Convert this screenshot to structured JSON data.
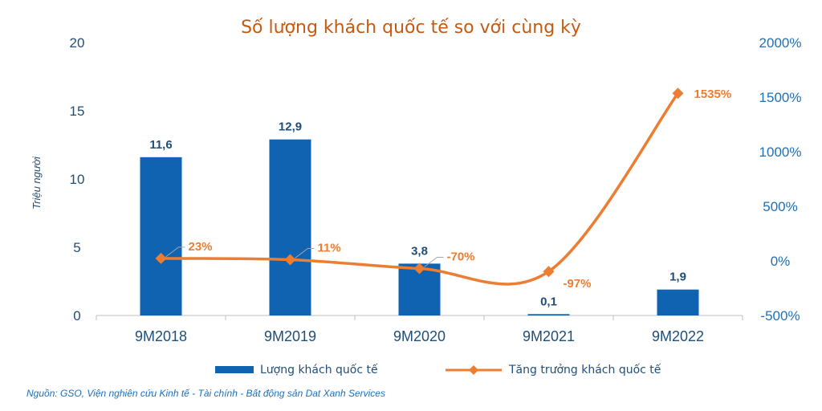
{
  "chart_data": {
    "type": "bar",
    "title": "Số lượng khách quốc tế so với cùng kỳ",
    "ylabel": "Triệu người",
    "xlabel": "",
    "categories": [
      "9M2018",
      "9M2019",
      "9M2020",
      "9M2021",
      "9M2022"
    ],
    "series": [
      {
        "name": "Lượng khách quốc tế",
        "type": "bar",
        "axis": "left",
        "values": [
          11.6,
          12.9,
          3.8,
          0.1,
          1.9
        ],
        "labels": [
          "11,6",
          "12,9",
          "3,8",
          "0,1",
          "1,9"
        ],
        "color": "#0f63b0"
      },
      {
        "name": "Tăng trưởng khách quốc tế",
        "type": "line",
        "axis": "right",
        "values": [
          23,
          11,
          -70,
          -97,
          1535
        ],
        "labels": [
          "23%",
          "11%",
          "-70%",
          "-97%",
          "1535%"
        ],
        "color": "#ed7d31"
      }
    ],
    "ylim": [
      0,
      20
    ],
    "yticks": [
      0,
      5,
      10,
      15,
      20
    ],
    "ytick_labels": [
      "0",
      "5",
      "10",
      "15",
      "20"
    ],
    "y2lim": [
      -500,
      2000
    ],
    "y2ticks": [
      -500,
      0,
      500,
      1000,
      1500,
      2000
    ],
    "y2tick_labels": [
      "-500%",
      "0%",
      "500%",
      "1000%",
      "1500%",
      "2000%"
    ],
    "grid": false,
    "legend_position": "bottom"
  },
  "source": "Nguồn: GSO, Viện nghiên cứu Kinh tế - Tài chính - Bất động sản Dat Xanh Services"
}
